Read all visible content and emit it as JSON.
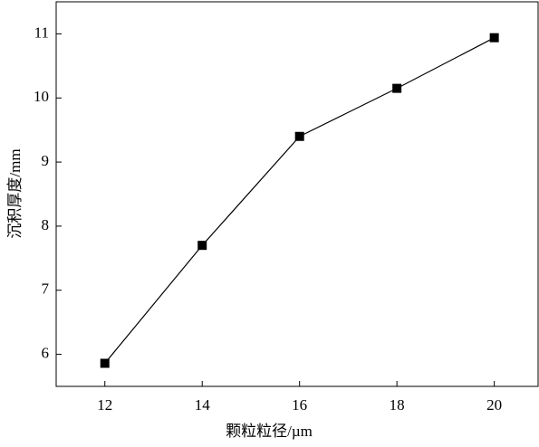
{
  "chart_data": {
    "type": "line",
    "x_label": "颗粒粒径/µm",
    "y_label": "沉积厚度/mm",
    "x": [
      12,
      14,
      16,
      18,
      20
    ],
    "series": [
      {
        "color": "#000000",
        "values": [
          5.86,
          7.7,
          9.4,
          10.15,
          10.94
        ]
      }
    ],
    "xlim": [
      11,
      20.9
    ],
    "ylim": [
      5.5,
      11.5
    ],
    "xticks": [
      12,
      14,
      16,
      18,
      20
    ],
    "yticks": [
      6,
      7,
      8,
      9,
      10,
      11
    ],
    "grid": false
  }
}
